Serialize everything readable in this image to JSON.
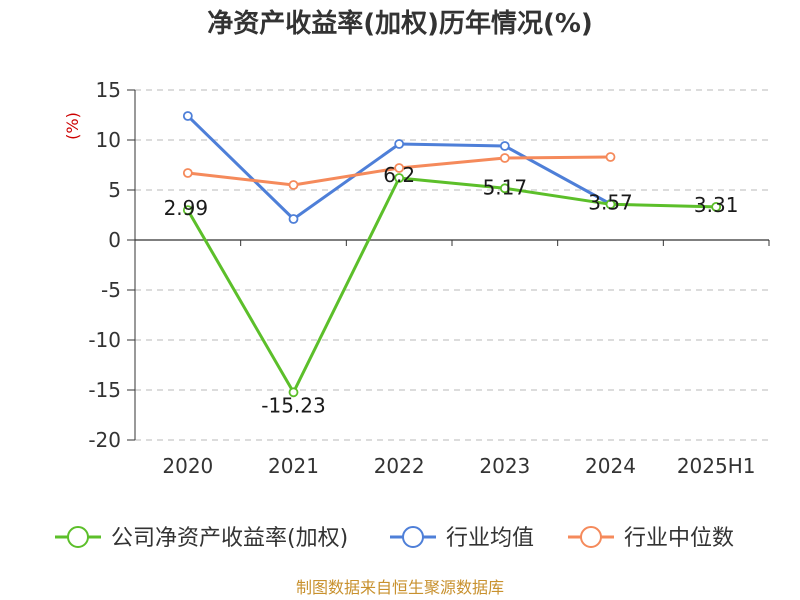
{
  "chart_data": {
    "type": "line",
    "title": "净资产收益率(加权)历年情况(%)",
    "ylabel": "(%)",
    "xlabel": "",
    "categories": [
      "2020",
      "2021",
      "2022",
      "2023",
      "2024",
      "2025H1"
    ],
    "y_ticks": [
      "15",
      "10",
      "5",
      "0",
      "-5",
      "-10",
      "-15",
      "-20"
    ],
    "ylim": [
      -20,
      15
    ],
    "grid": "horizontal dashed",
    "legend_position": "bottom",
    "series": [
      {
        "name": "公司净资产收益率(加权)",
        "color": "#5cbf2a",
        "values": [
          2.99,
          -15.23,
          6.2,
          5.17,
          3.57,
          3.31
        ],
        "labels": [
          "2.99",
          "-15.23",
          "6.2",
          "5.17",
          "3.57",
          "3.31"
        ]
      },
      {
        "name": "行业均值",
        "color": "#4e7fd8",
        "values": [
          12.4,
          2.1,
          9.6,
          9.4,
          3.6,
          null
        ]
      },
      {
        "name": "行业中位数",
        "color": "#f58a5b",
        "values": [
          6.7,
          5.5,
          7.2,
          8.2,
          8.3,
          null
        ]
      }
    ]
  },
  "footer": {
    "source": "制图数据来自恒生聚源数据库"
  }
}
